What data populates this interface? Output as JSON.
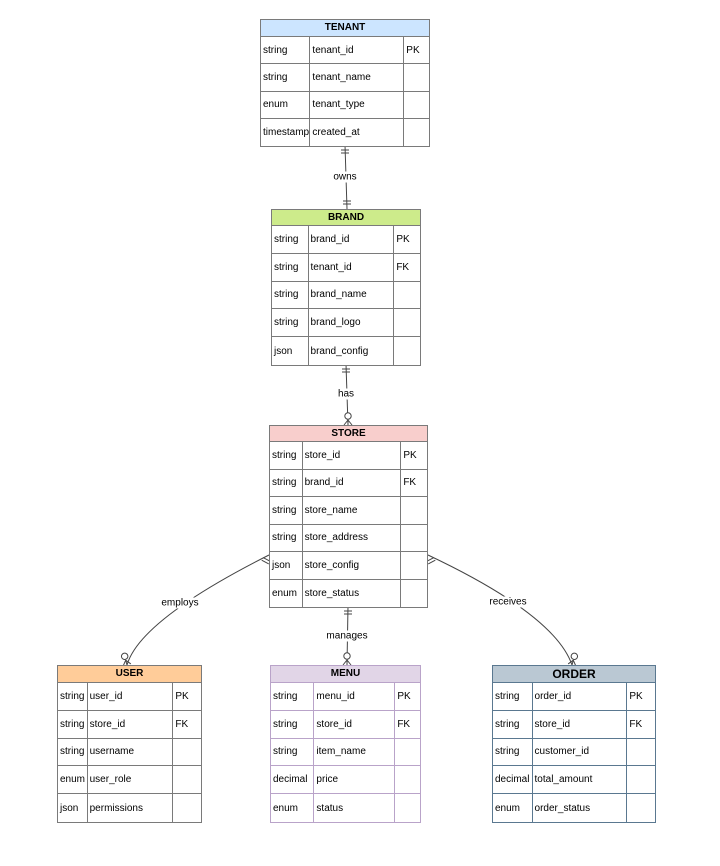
{
  "entities": [
    {
      "id": "tenant",
      "name": "TENANT",
      "header_color": "#cce5ff",
      "border_color": "#7a7a7a",
      "rows": [
        [
          "string",
          "tenant_id",
          "PK"
        ],
        [
          "string",
          "tenant_name",
          ""
        ],
        [
          "enum",
          "tenant_type",
          ""
        ],
        [
          "timestamp",
          "created_at",
          ""
        ]
      ]
    },
    {
      "id": "brand",
      "name": "BRAND",
      "header_color": "#cdeb8b",
      "border_color": "#7a7a7a",
      "rows": [
        [
          "string",
          "brand_id",
          "PK"
        ],
        [
          "string",
          "tenant_id",
          "FK"
        ],
        [
          "string",
          "brand_name",
          ""
        ],
        [
          "string",
          "brand_logo",
          ""
        ],
        [
          "json",
          "brand_config",
          ""
        ]
      ]
    },
    {
      "id": "store",
      "name": "STORE",
      "header_color": "#f8cecc",
      "border_color": "#7a7a7a",
      "rows": [
        [
          "string",
          "store_id",
          "PK"
        ],
        [
          "string",
          "brand_id",
          "FK"
        ],
        [
          "string",
          "store_name",
          ""
        ],
        [
          "string",
          "store_address",
          ""
        ],
        [
          "json",
          "store_config",
          ""
        ],
        [
          "enum",
          "store_status",
          ""
        ]
      ]
    },
    {
      "id": "user",
      "name": "USER",
      "header_color": "#ffcc99",
      "border_color": "#7a7a7a",
      "rows": [
        [
          "string",
          "user_id",
          "PK"
        ],
        [
          "string",
          "store_id",
          "FK"
        ],
        [
          "string",
          "username",
          ""
        ],
        [
          "enum",
          "user_role",
          ""
        ],
        [
          "json",
          "permissions",
          ""
        ]
      ]
    },
    {
      "id": "menu",
      "name": "MENU",
      "header_color": "#e1d5e7",
      "border_color": "#b9a3c9",
      "rows": [
        [
          "string",
          "menu_id",
          "PK"
        ],
        [
          "string",
          "store_id",
          "FK"
        ],
        [
          "string",
          "item_name",
          ""
        ],
        [
          "decimal",
          "price",
          ""
        ],
        [
          "enum",
          "status",
          ""
        ]
      ]
    },
    {
      "id": "order",
      "name": "ORDER",
      "header_color": "#bac8d3",
      "border_color": "#5a7890",
      "rows": [
        [
          "string",
          "order_id",
          "PK"
        ],
        [
          "string",
          "store_id",
          "FK"
        ],
        [
          "string",
          "customer_id",
          ""
        ],
        [
          "decimal",
          "total_amount",
          ""
        ],
        [
          "enum",
          "order_status",
          ""
        ]
      ]
    }
  ],
  "relationships": [
    {
      "from": "tenant",
      "to": "brand",
      "label": "owns",
      "from_card": "one",
      "to_card": "one"
    },
    {
      "from": "brand",
      "to": "store",
      "label": "has",
      "from_card": "one",
      "to_card": "zero-or-many"
    },
    {
      "from": "store",
      "to": "user",
      "label": "employs",
      "from_card": "one",
      "to_card": "zero-or-many"
    },
    {
      "from": "store",
      "to": "menu",
      "label": "manages",
      "from_card": "one",
      "to_card": "zero-or-many"
    },
    {
      "from": "store",
      "to": "order",
      "label": "receives",
      "from_card": "one",
      "to_card": "zero-or-many"
    }
  ]
}
